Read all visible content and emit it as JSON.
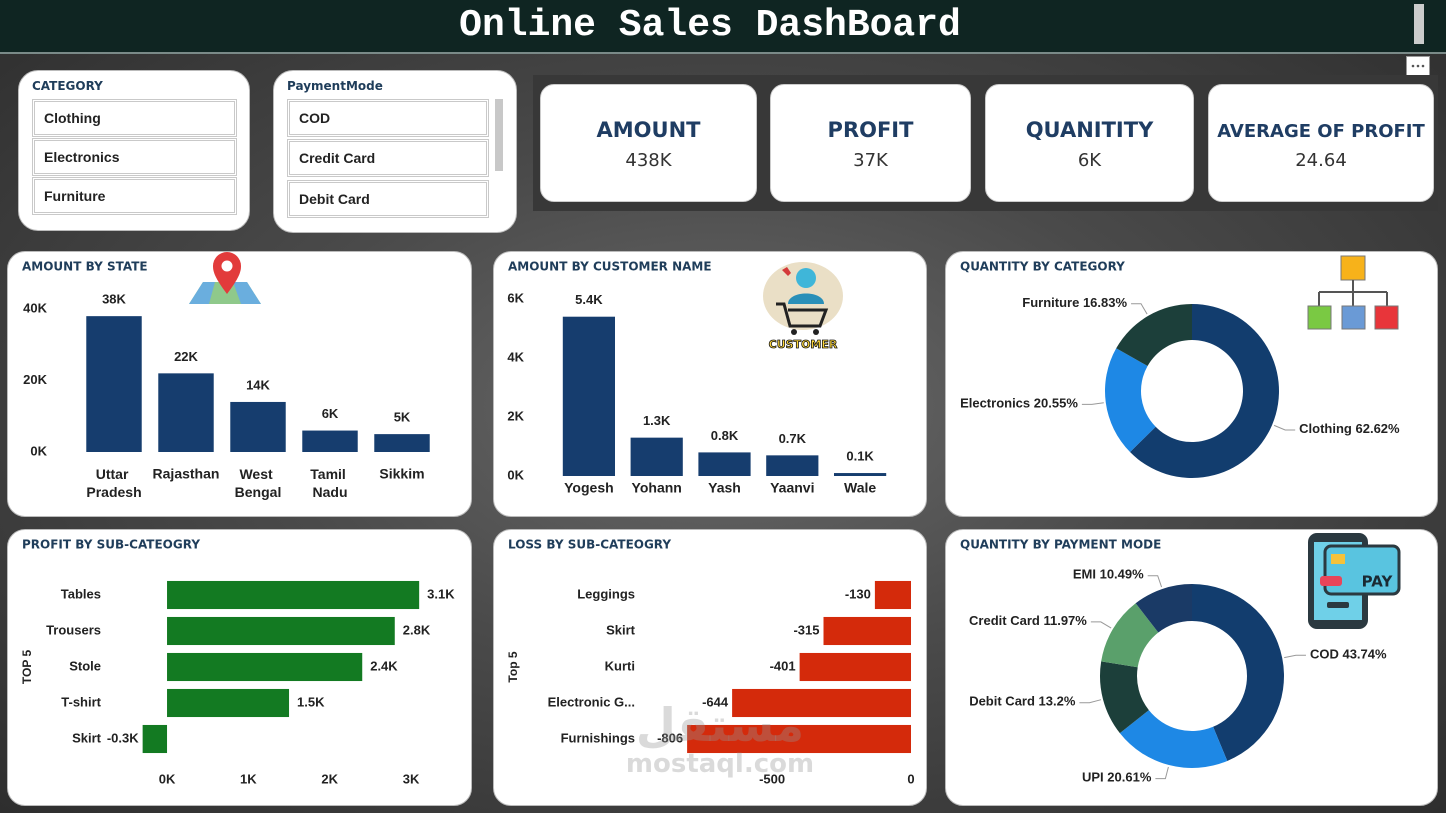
{
  "header": {
    "title": "Online Sales DashBoard"
  },
  "slicers": [
    {
      "title": "CATEGORY",
      "items": [
        "Clothing",
        "Electronics",
        "Furniture"
      ]
    },
    {
      "title": "PaymentMode",
      "items": [
        "COD",
        "Credit Card",
        "Debit Card"
      ]
    }
  ],
  "cards": [
    {
      "label": "AMOUNT",
      "value": "438K"
    },
    {
      "label": "PROFIT",
      "value": "37K"
    },
    {
      "label": "QUANITITY",
      "value": "6K"
    },
    {
      "label": "AVERAGE OF PROFIT",
      "value": "24.64"
    }
  ],
  "icons": {
    "customer": "CUSTOMER",
    "payment": "PAY"
  },
  "watermark": {
    "logo": "مستقل",
    "site": "mostaql.com"
  },
  "chart_data": [
    {
      "type": "bar",
      "title": "AMOUNT BY STATE",
      "categories": [
        "Uttar Pradesh",
        "Rajasthan",
        "West Bengal",
        "Tamil Nadu",
        "Sikkim"
      ],
      "values": [
        38000,
        22000,
        14000,
        6000,
        5000
      ],
      "value_labels": [
        "38K",
        "22K",
        "14K",
        "6K",
        "5K"
      ],
      "color": "#163d6e",
      "ylim": [
        0,
        40000
      ],
      "yticks": [
        {
          "value": 0,
          "label": "0K"
        },
        {
          "value": 20000,
          "label": "20K"
        },
        {
          "value": 40000,
          "label": "40K"
        }
      ],
      "grid": false
    },
    {
      "type": "bar",
      "title": "AMOUNT BY CUSTOMER NAME",
      "categories": [
        "Yogesh",
        "Yohann",
        "Yash",
        "Yaanvi",
        "Wale"
      ],
      "values": [
        5400,
        1300,
        800,
        700,
        100
      ],
      "value_labels": [
        "5.4K",
        "1.3K",
        "0.8K",
        "0.7K",
        "0.1K"
      ],
      "color": "#163d6e",
      "ylim": [
        0,
        6000
      ],
      "yticks": [
        {
          "value": 0,
          "label": "0K"
        },
        {
          "value": 2000,
          "label": "2K"
        },
        {
          "value": 4000,
          "label": "4K"
        },
        {
          "value": 6000,
          "label": "6K"
        }
      ],
      "grid": false
    },
    {
      "type": "donut",
      "title": "QUANTITY BY CATEGORY",
      "categories": [
        "Clothing",
        "Electronics",
        "Furniture"
      ],
      "values": [
        62.62,
        20.55,
        16.83
      ],
      "value_labels": [
        "62.62%",
        "20.55%",
        "16.83%"
      ],
      "colors": [
        "#123d6e",
        "#1e88e5",
        "#1c3f3a"
      ]
    },
    {
      "type": "hbar",
      "title": "PROFIT BY SUB-CATEOGRY",
      "y_label": "TOP 5",
      "categories": [
        "Tables",
        "Trousers",
        "Stole",
        "T-shirt",
        "Skirt"
      ],
      "values": [
        3100,
        2800,
        2400,
        1500,
        -300
      ],
      "value_labels": [
        "3.1K",
        "2.8K",
        "2.4K",
        "1.5K",
        "-0.3K"
      ],
      "color": "#137a22",
      "xlim": [
        -400,
        3200
      ],
      "xticks": [
        {
          "value": 0,
          "label": "0K"
        },
        {
          "value": 1000,
          "label": "1K"
        },
        {
          "value": 2000,
          "label": "2K"
        },
        {
          "value": 3000,
          "label": "3K"
        }
      ],
      "grid": false
    },
    {
      "type": "hbar",
      "title": "LOSS BY SUB-CATEOGRY",
      "y_label": "Top 5",
      "categories": [
        "Leggings",
        "Skirt",
        "Kurti",
        "Electronic G...",
        "Furnishings"
      ],
      "values": [
        -130,
        -315,
        -401,
        -644,
        -806
      ],
      "color": "#d42a0b",
      "xlim": [
        -900,
        0
      ],
      "xticks": [
        -500,
        0
      ],
      "grid": false
    },
    {
      "type": "donut",
      "title": "QUANTITY BY PAYMENT MODE",
      "categories": [
        "COD",
        "UPI",
        "Debit Card",
        "Credit Card",
        "EMI"
      ],
      "values": [
        43.74,
        20.61,
        13.2,
        11.97,
        10.49
      ],
      "value_labels": [
        "43.74%",
        "20.61%",
        "13.2%",
        "11.97%",
        "10.49%"
      ],
      "colors": [
        "#123d6e",
        "#1e88e5",
        "#1c3f3a",
        "#5aa06b",
        "#1a3a66"
      ]
    }
  ]
}
